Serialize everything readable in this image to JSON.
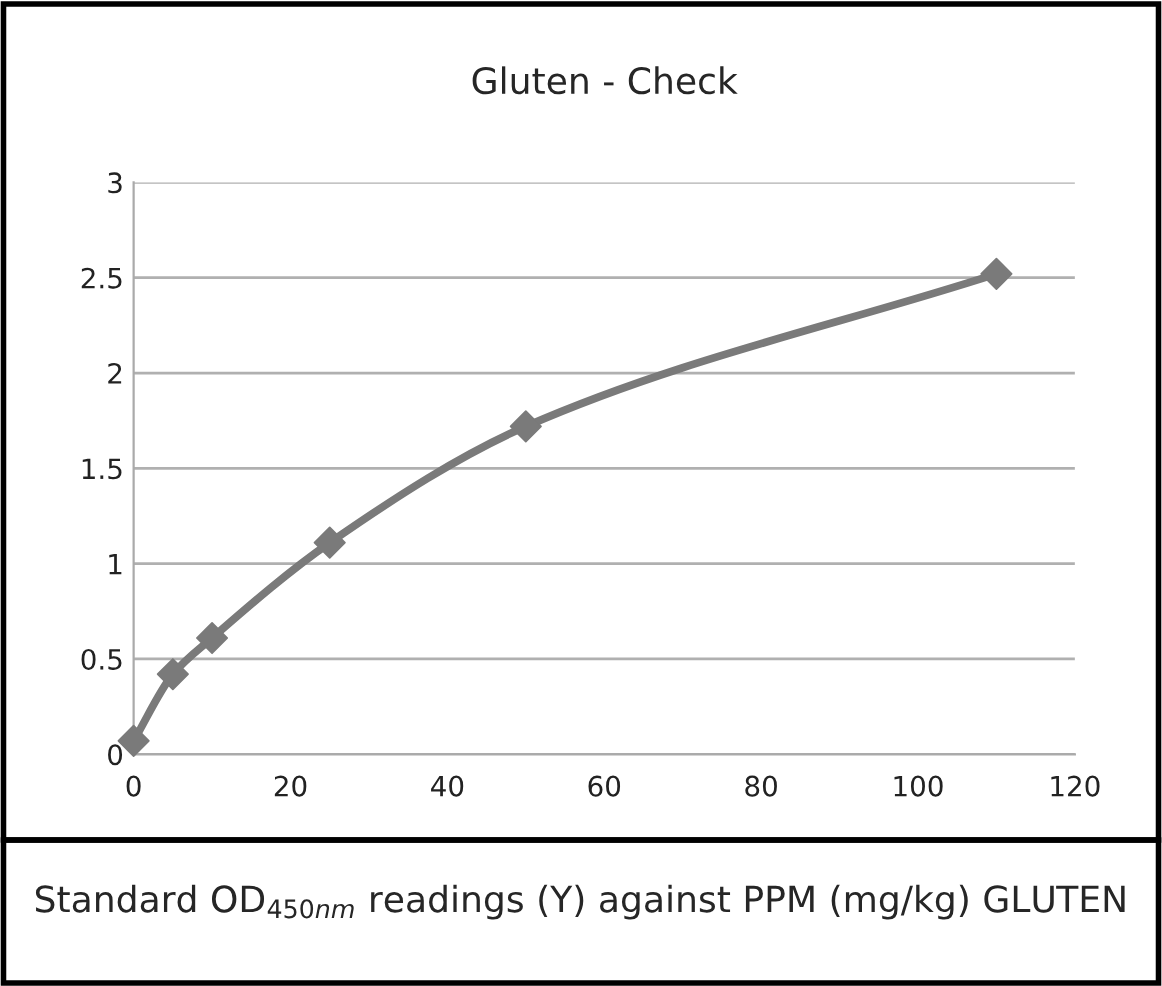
{
  "chart_data": {
    "type": "line",
    "title": "Gluten - Check",
    "x": [
      0,
      5,
      10,
      25,
      50,
      110
    ],
    "series": [
      {
        "color": "#7a7a7a",
        "values": [
          0.07,
          0.42,
          0.61,
          1.11,
          1.72,
          2.52
        ]
      }
    ],
    "xlim": [
      0,
      120
    ],
    "xticks": [
      0,
      20,
      40,
      60,
      80,
      100,
      120
    ],
    "ylim": [
      0,
      3
    ],
    "yticks": [
      0,
      0.5,
      1,
      1.5,
      2,
      2.5,
      3
    ],
    "grid": "y",
    "marker": "diamond",
    "line_style": "solid",
    "annotations": [
      "Standard OD$_{450nm}$ readings (Y) against PPM (mg/kg) GLUTEN"
    ]
  }
}
